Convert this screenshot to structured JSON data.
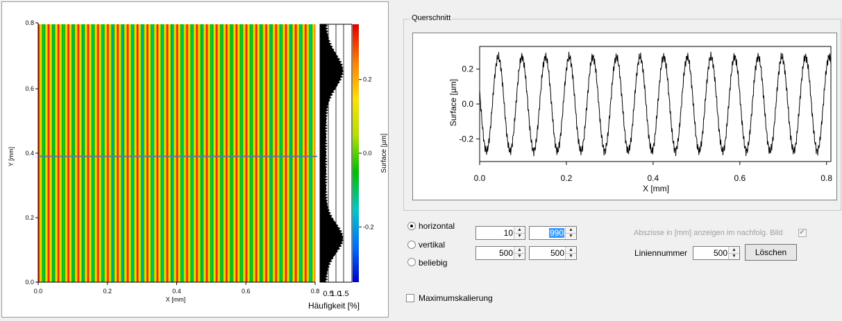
{
  "surface_map": {
    "x_axis_label": "X [mm]",
    "y_axis_label": "Y [mm]",
    "x_ticks": [
      "0.0",
      "0.2",
      "0.4",
      "0.6",
      "0.8"
    ],
    "y_ticks": [
      "0.0",
      "0.2",
      "0.4",
      "0.6",
      "0.8"
    ],
    "stripe_count": 28,
    "selected_line_y_mm": 0.39,
    "histogram_x_ticks": [
      "0.5",
      "1.0",
      "1.5"
    ],
    "histogram_label": "Häufigkeit [%]",
    "colorbar_label": "Surface [µm]",
    "colorbar_ticks": [
      "0.2",
      "0.0",
      "-0.2"
    ],
    "colorbar_min_um": -0.35,
    "colorbar_max_um": 0.35,
    "colors": [
      "#0000cc",
      "#0070ff",
      "#00c8c8",
      "#00c000",
      "#b4e000",
      "#ffe000",
      "#ff8000",
      "#e00000"
    ]
  },
  "cross_section": {
    "group_title": "Querschnitt",
    "chart_data": {
      "type": "line",
      "xlabel": "X [mm]",
      "ylabel": "Surface [µm]",
      "xlim": [
        0.0,
        0.81
      ],
      "ylim": [
        -0.33,
        0.33
      ],
      "x_ticks": [
        "0.0",
        "0.2",
        "0.4",
        "0.6",
        "0.8"
      ],
      "y_ticks": [
        "0.2",
        "0.0",
        "-0.2"
      ],
      "period_mm": 0.0545,
      "amplitude_um": 0.27,
      "offset_um": 0.0,
      "peaks_x_mm": [
        0.043,
        0.095,
        0.15,
        0.2,
        0.255,
        0.31,
        0.365,
        0.42,
        0.475,
        0.53,
        0.585,
        0.64,
        0.695,
        0.75,
        0.803
      ]
    }
  },
  "controls": {
    "mode_options": [
      {
        "label": "horizontal",
        "selected": true
      },
      {
        "label": "vertikal",
        "selected": false
      },
      {
        "label": "beliebig",
        "selected": false
      }
    ],
    "spin_row1": [
      "10",
      "990"
    ],
    "spin_row2": [
      "500",
      "500"
    ],
    "abszisse_label": "Abszisse in [mm] anzeigen im nachfolg. Bild",
    "abszisse_checked": true,
    "liniennummer_label": "Liniennummer",
    "liniennummer_value": "500",
    "loeschen_label": "Löschen",
    "maximumskalierung_label": "Maximumskalierung",
    "maximumskalierung_checked": false
  }
}
